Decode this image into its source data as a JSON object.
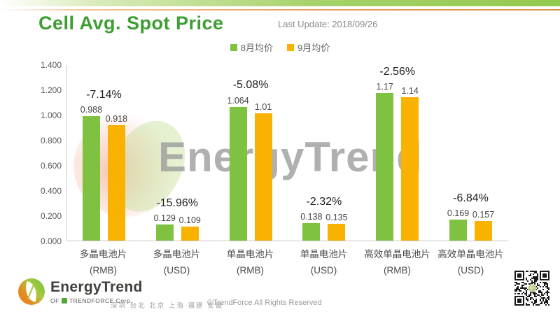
{
  "header": {
    "title": "Cell Avg. Spot Price",
    "last_update": "Last Update: 2018/09/26"
  },
  "chart_data": {
    "type": "bar",
    "title": "Cell Avg. Spot Price",
    "xlabel": "",
    "ylabel": "",
    "ylim": [
      0,
      1.4
    ],
    "ytick_step": 0.2,
    "yticks": [
      "1.400",
      "1.200",
      "1.000",
      "0.800",
      "0.600",
      "0.400",
      "0.200",
      "0.000"
    ],
    "grid": false,
    "legend_position": "top-center",
    "categories": [
      {
        "name": "多晶电池片",
        "unit": "(RMB)"
      },
      {
        "name": "多晶电池片",
        "unit": "(USD)"
      },
      {
        "name": "单晶电池片",
        "unit": "(RMB)"
      },
      {
        "name": "单晶电池片",
        "unit": "(USD)"
      },
      {
        "name": "高效单晶电池片",
        "unit": "(RMB)"
      },
      {
        "name": "高效单晶电池片",
        "unit": "(USD)"
      }
    ],
    "series": [
      {
        "name": "8月均价",
        "color": "#7fc241",
        "values": [
          0.988,
          0.129,
          1.064,
          0.138,
          1.17,
          0.169
        ],
        "labels": [
          "0.988",
          "0.129",
          "1.064",
          "0.138",
          "1.17",
          "0.169"
        ]
      },
      {
        "name": "9月均价",
        "color": "#f9b200",
        "values": [
          0.918,
          0.109,
          1.01,
          0.135,
          1.14,
          0.157
        ],
        "labels": [
          "0.918",
          "0.109",
          "1.01",
          "0.135",
          "1.14",
          "0.157"
        ]
      }
    ],
    "pct_change": [
      "-7.14%",
      "-15.96%",
      "-5.08%",
      "-2.32%",
      "-2.56%",
      "-6.84%"
    ]
  },
  "watermark": {
    "text": "EnergyTrend"
  },
  "footer": {
    "logo_text": "EnergyTrend",
    "logo_sub_prefix": "OF",
    "logo_sub_brand": "TRENDFORCE Corp.",
    "cities": "深圳 台北 北京 上海 福建 安徽",
    "copyright": "©TrendForce All Rights Reserved"
  }
}
